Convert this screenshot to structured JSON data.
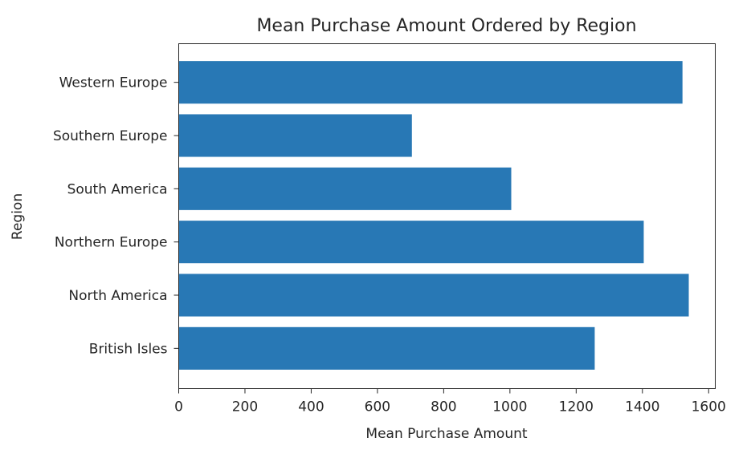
{
  "chart_data": {
    "type": "bar",
    "orientation": "horizontal",
    "title": "Mean Purchase Amount Ordered by Region",
    "xlabel": "Mean Purchase Amount",
    "ylabel": "Region",
    "categories": [
      "British Isles",
      "North America",
      "Northern Europe",
      "South America",
      "Southern Europe",
      "Western Europe"
    ],
    "values": [
      1256,
      1540,
      1404,
      1004,
      704,
      1521
    ],
    "xlim": [
      0,
      1620
    ],
    "xticks": [
      0,
      200,
      400,
      600,
      800,
      1000,
      1200,
      1400,
      1600
    ],
    "bar_color": "#2878b5",
    "grid": false,
    "legend": "none"
  }
}
